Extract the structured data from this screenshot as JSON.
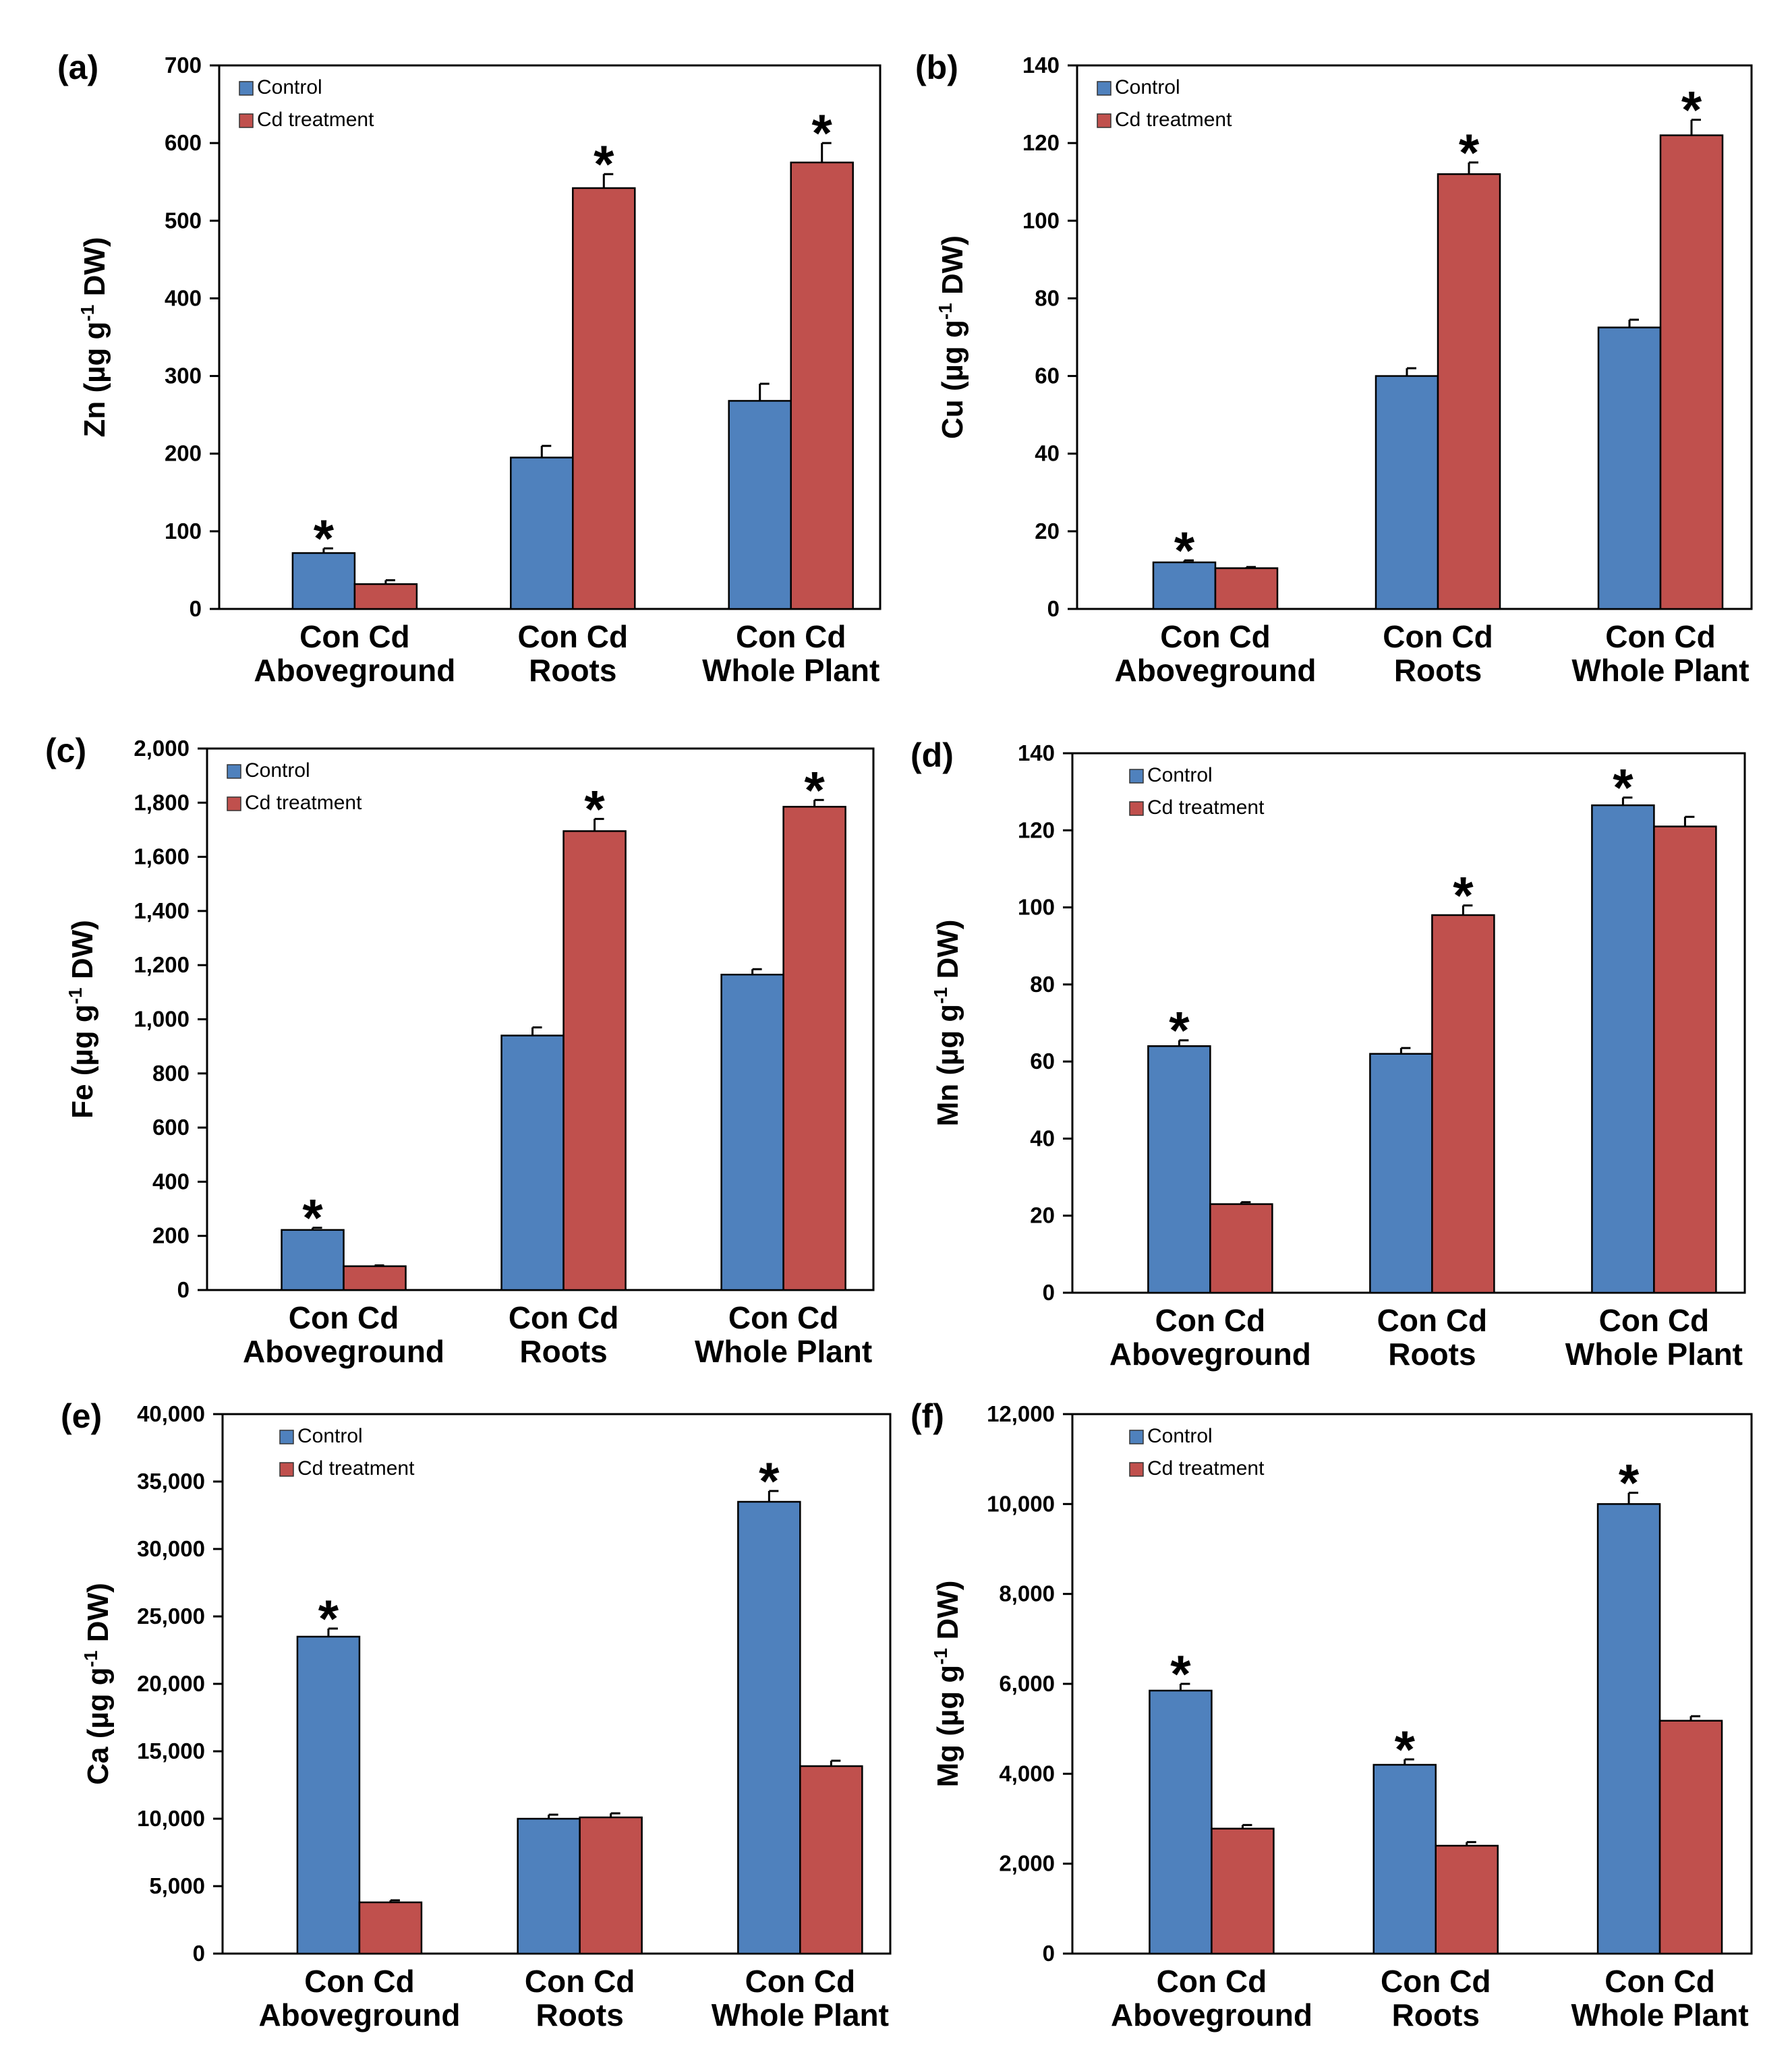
{
  "figure": {
    "series_names": [
      "Control",
      "Cd treatment"
    ],
    "colors": {
      "control": "#4F81BD",
      "cd": "#C0504D",
      "axis": "#000000"
    }
  },
  "chart_data": [
    {
      "panel": "(a)",
      "type": "bar",
      "ylabel_main": "Zn (µg g",
      "ylabel_sup": "-1",
      "ylabel_tail": " DW)",
      "ylim": [
        0,
        700
      ],
      "yticks": [
        0,
        100,
        200,
        300,
        400,
        500,
        600,
        700
      ],
      "ytick_labels": [
        "0",
        "100",
        "200",
        "300",
        "400",
        "500",
        "600",
        "700"
      ],
      "categories": [
        "Aboveground",
        "Roots",
        "Whole Plant"
      ],
      "bar_labels": [
        "Con Cd",
        "Con Cd",
        "Con Cd"
      ],
      "series": [
        {
          "name": "Control",
          "values": [
            72,
            195,
            268
          ],
          "errors": [
            6,
            15,
            22
          ]
        },
        {
          "name": "Cd treatment",
          "values": [
            32,
            542,
            575
          ],
          "errors": [
            5,
            18,
            25
          ]
        }
      ],
      "significance": [
        {
          "category": "Aboveground",
          "series": "Control",
          "label": "*"
        },
        {
          "category": "Roots",
          "series": "Cd treatment",
          "label": "*"
        },
        {
          "category": "Whole Plant",
          "series": "Cd treatment",
          "label": "*"
        }
      ],
      "legend_position": "top-left"
    },
    {
      "panel": "(b)",
      "type": "bar",
      "ylabel_main": "Cu (µg g",
      "ylabel_sup": "-1",
      "ylabel_tail": " DW)",
      "ylim": [
        0,
        140
      ],
      "yticks": [
        0,
        20,
        40,
        60,
        80,
        100,
        120,
        140
      ],
      "ytick_labels": [
        "0",
        "20",
        "40",
        "60",
        "80",
        "100",
        "120",
        "140"
      ],
      "categories": [
        "Aboveground",
        "Roots",
        "Whole Plant"
      ],
      "bar_labels": [
        "Con Cd",
        "Con Cd",
        "Con Cd"
      ],
      "series": [
        {
          "name": "Control",
          "values": [
            12,
            60,
            72.5
          ],
          "errors": [
            0.5,
            2,
            2
          ]
        },
        {
          "name": "Cd treatment",
          "values": [
            10.5,
            112,
            122
          ],
          "errors": [
            0.3,
            3,
            4
          ]
        }
      ],
      "significance": [
        {
          "category": "Aboveground",
          "series": "Control",
          "label": "*"
        },
        {
          "category": "Roots",
          "series": "Cd treatment",
          "label": "*"
        },
        {
          "category": "Whole Plant",
          "series": "Cd treatment",
          "label": "*"
        }
      ],
      "legend_position": "top-left"
    },
    {
      "panel": "(c)",
      "type": "bar",
      "ylabel_main": "Fe (µg g",
      "ylabel_sup": "-1",
      "ylabel_tail": " DW)",
      "ylim": [
        0,
        2000
      ],
      "yticks": [
        0,
        200,
        400,
        600,
        800,
        1000,
        1200,
        1400,
        1600,
        1800,
        2000
      ],
      "ytick_labels": [
        "0",
        "200",
        "400",
        "600",
        "800",
        "1,000",
        "1,200",
        "1,400",
        "1,600",
        "1,800",
        "2,000"
      ],
      "categories": [
        "Aboveground",
        "Roots",
        "Whole Plant"
      ],
      "bar_labels": [
        "Con Cd",
        "Con Cd",
        "Con Cd"
      ],
      "series": [
        {
          "name": "Control",
          "values": [
            222,
            940,
            1165
          ],
          "errors": [
            8,
            30,
            20
          ]
        },
        {
          "name": "Cd treatment",
          "values": [
            88,
            1695,
            1785
          ],
          "errors": [
            3,
            45,
            25
          ]
        }
      ],
      "significance": [
        {
          "category": "Aboveground",
          "series": "Control",
          "label": "*"
        },
        {
          "category": "Roots",
          "series": "Cd treatment",
          "label": "*"
        },
        {
          "category": "Whole Plant",
          "series": "Cd treatment",
          "label": "*"
        }
      ],
      "legend_position": "top-left"
    },
    {
      "panel": "(d)",
      "type": "bar",
      "ylabel_main": "Mn (µg g",
      "ylabel_sup": "-1",
      "ylabel_tail": " DW)",
      "ylim": [
        0,
        140
      ],
      "yticks": [
        0,
        20,
        40,
        60,
        80,
        100,
        120,
        140
      ],
      "ytick_labels": [
        "0",
        "20",
        "40",
        "60",
        "80",
        "100",
        "120",
        "140"
      ],
      "categories": [
        "Aboveground",
        "Roots",
        "Whole Plant"
      ],
      "bar_labels": [
        "Con Cd",
        "Con Cd",
        "Con Cd"
      ],
      "series": [
        {
          "name": "Control",
          "values": [
            64,
            62,
            126.5
          ],
          "errors": [
            1.5,
            1.5,
            2
          ]
        },
        {
          "name": "Cd treatment",
          "values": [
            23,
            98,
            121
          ],
          "errors": [
            0.5,
            2.5,
            2.5
          ]
        }
      ],
      "significance": [
        {
          "category": "Aboveground",
          "series": "Control",
          "label": "*"
        },
        {
          "category": "Roots",
          "series": "Cd treatment",
          "label": "*"
        },
        {
          "category": "Whole Plant",
          "series": "Control",
          "label": "*"
        }
      ],
      "legend_position": "top-left"
    },
    {
      "panel": "(e)",
      "type": "bar",
      "ylabel_main": "Ca (µg g",
      "ylabel_sup": "-1",
      "ylabel_tail": " DW)",
      "ylim": [
        0,
        40000
      ],
      "yticks": [
        0,
        5000,
        10000,
        15000,
        20000,
        25000,
        30000,
        35000,
        40000
      ],
      "ytick_labels": [
        "0",
        "5,000",
        "10,000",
        "15,000",
        "20,000",
        "25,000",
        "30,000",
        "35,000",
        "40,000"
      ],
      "categories": [
        "Aboveground",
        "Roots",
        "Whole Plant"
      ],
      "bar_labels": [
        "Con Cd",
        "Con Cd",
        "Con Cd"
      ],
      "series": [
        {
          "name": "Control",
          "values": [
            23500,
            10000,
            33500
          ],
          "errors": [
            600,
            300,
            800
          ]
        },
        {
          "name": "Cd treatment",
          "values": [
            3800,
            10100,
            13900
          ],
          "errors": [
            150,
            300,
            400
          ]
        }
      ],
      "significance": [
        {
          "category": "Aboveground",
          "series": "Control",
          "label": "*"
        },
        {
          "category": "Whole Plant",
          "series": "Control",
          "label": "*"
        }
      ],
      "legend_position": "top-left"
    },
    {
      "panel": "(f)",
      "type": "bar",
      "ylabel_main": "Mg (µg g",
      "ylabel_sup": "-1",
      "ylabel_tail": " DW)",
      "ylim": [
        0,
        12000
      ],
      "yticks": [
        0,
        2000,
        4000,
        6000,
        8000,
        10000,
        12000
      ],
      "ytick_labels": [
        "0",
        "2,000",
        "4,000",
        "6,000",
        "8,000",
        "10,000",
        "12,000"
      ],
      "categories": [
        "Aboveground",
        "Roots",
        "Whole Plant"
      ],
      "bar_labels": [
        "Con Cd",
        "Con Cd",
        "Con Cd"
      ],
      "series": [
        {
          "name": "Control",
          "values": [
            5850,
            4200,
            10000
          ],
          "errors": [
            150,
            120,
            250
          ]
        },
        {
          "name": "Cd treatment",
          "values": [
            2780,
            2400,
            5180
          ],
          "errors": [
            80,
            80,
            100
          ]
        }
      ],
      "significance": [
        {
          "category": "Aboveground",
          "series": "Control",
          "label": "*"
        },
        {
          "category": "Roots",
          "series": "Control",
          "label": "*"
        },
        {
          "category": "Whole Plant",
          "series": "Control",
          "label": "*"
        }
      ],
      "legend_position": "top-left"
    }
  ]
}
